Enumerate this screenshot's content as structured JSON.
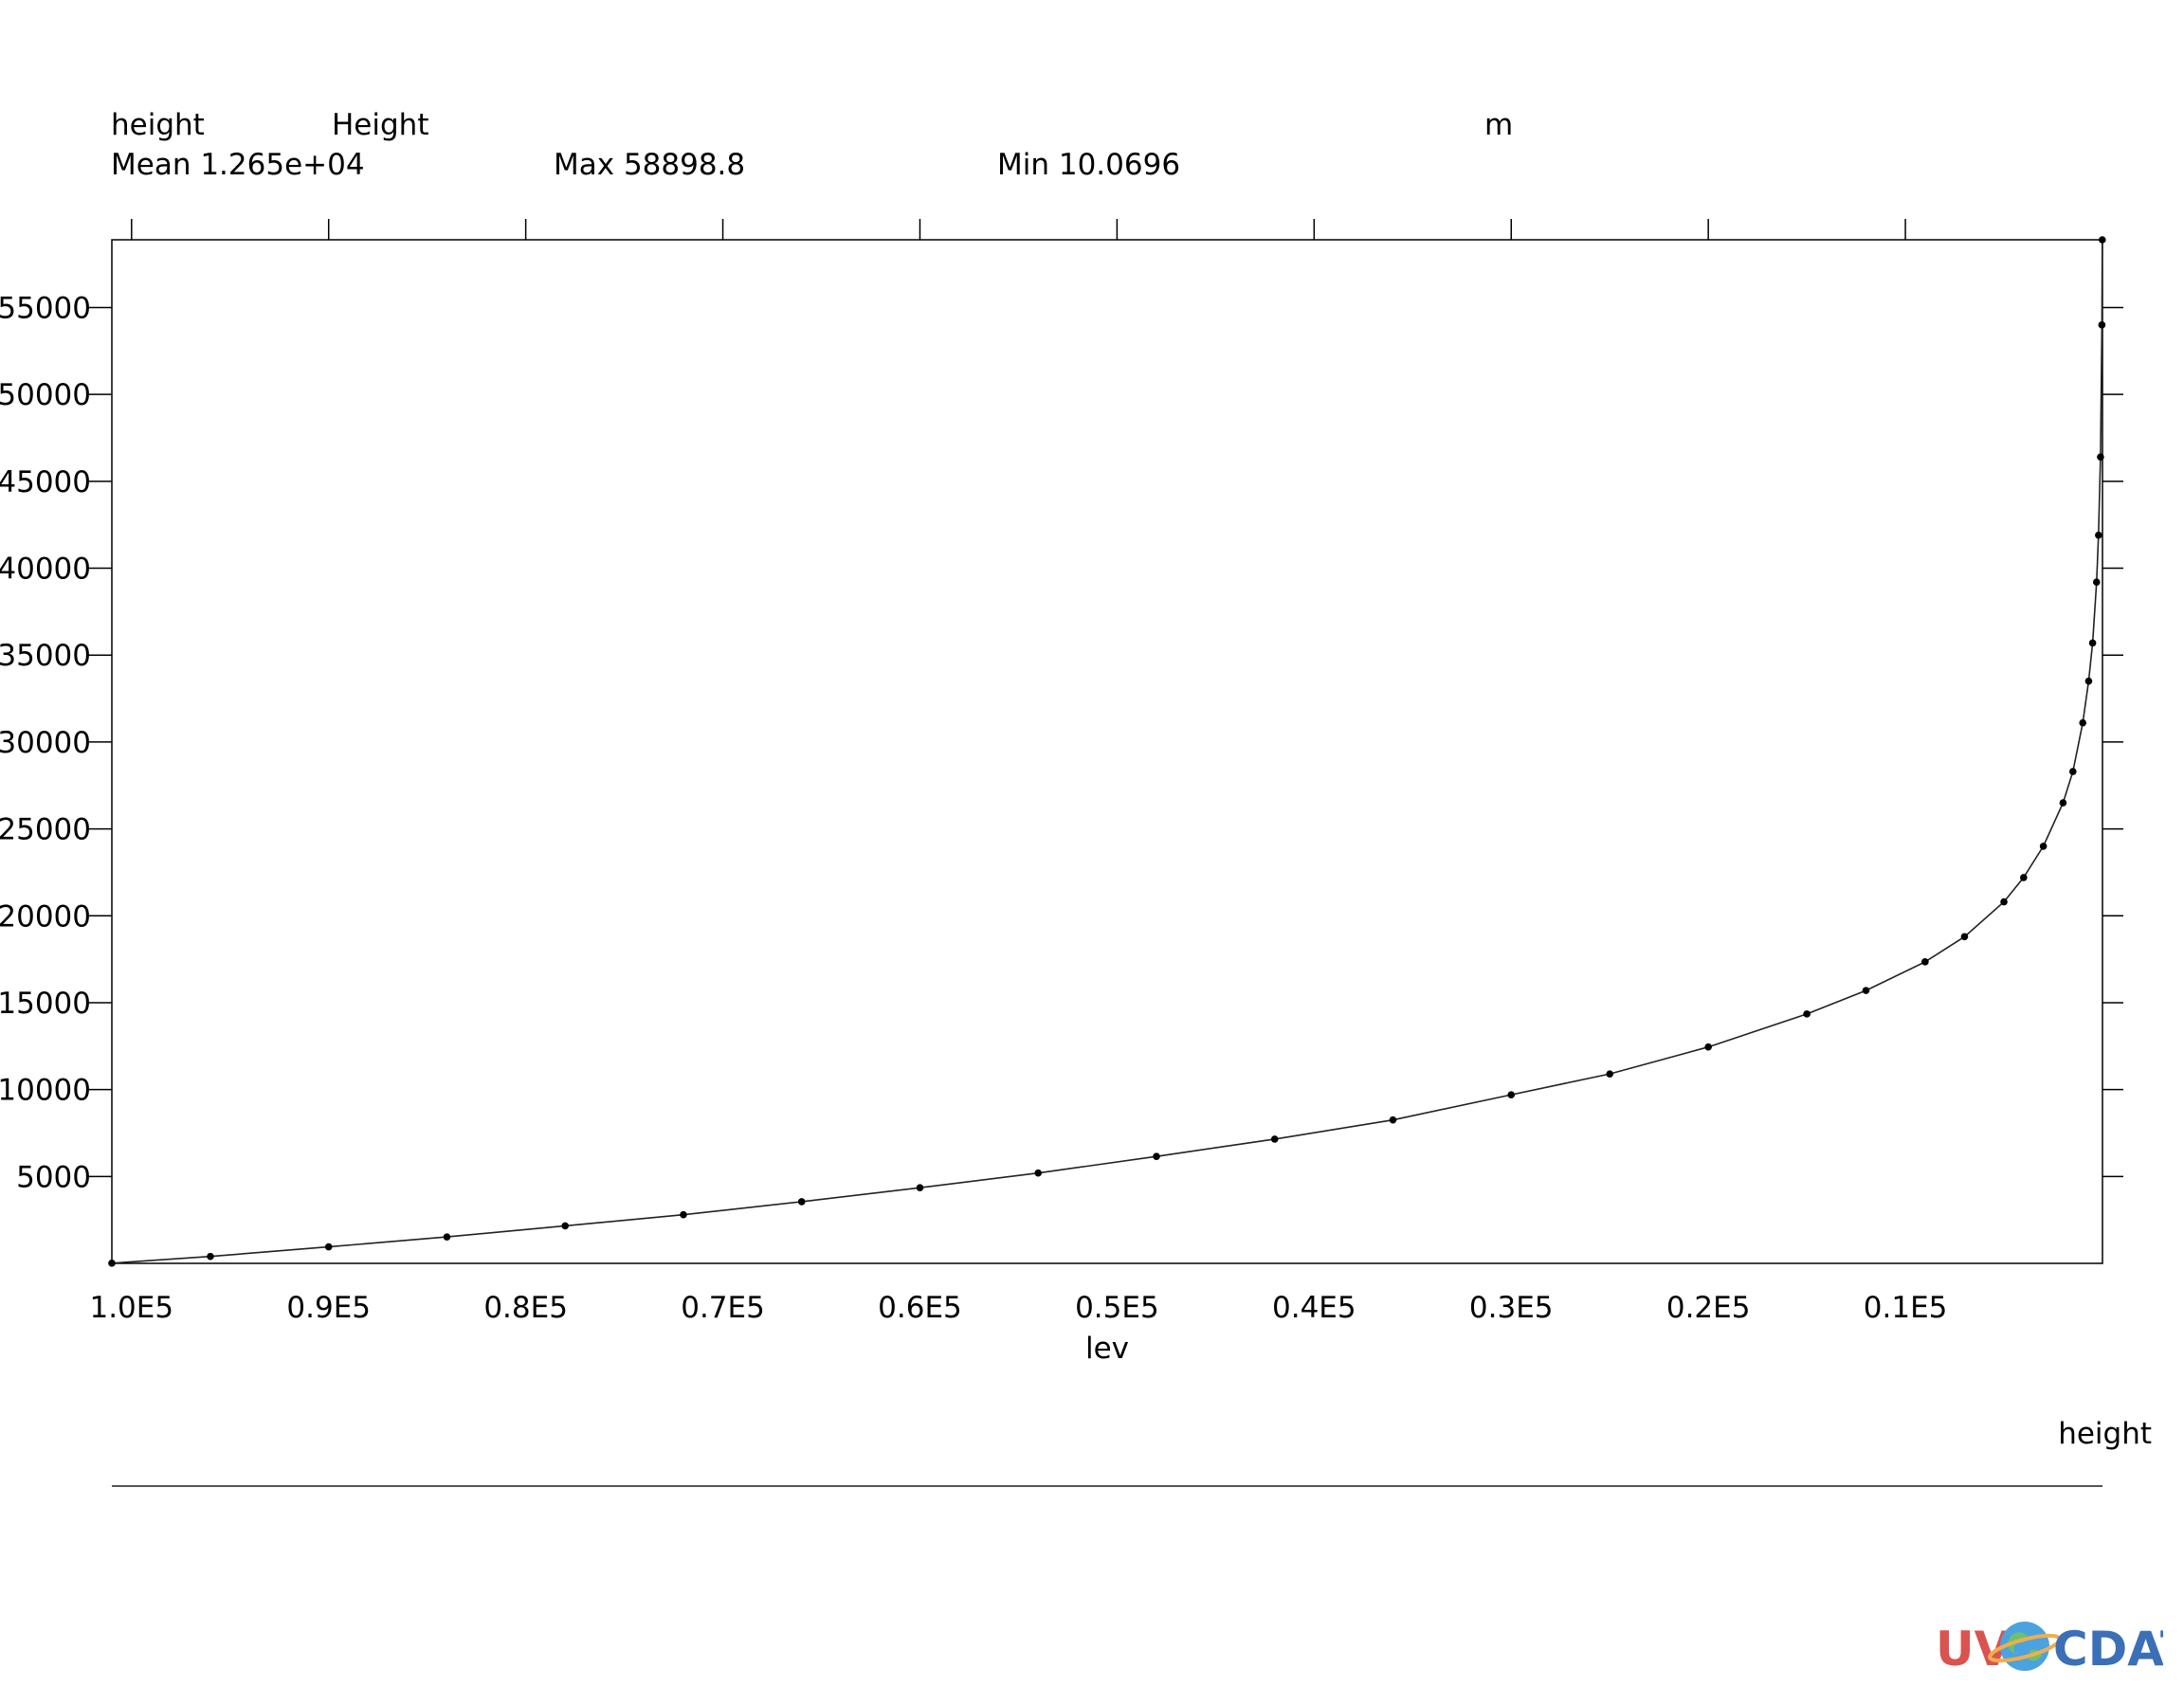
{
  "header": {
    "var_name": "height",
    "long_name": "Height",
    "units": "m",
    "mean": "Mean 1.265e+04",
    "max": "Max 58898.8",
    "min": "Min 10.0696"
  },
  "legend": {
    "label": "height"
  },
  "logo": {
    "text_uv": "UV",
    "text_cdat": "CDAT"
  },
  "chart_data": {
    "type": "line",
    "xlabel": "lev",
    "ylabel": "",
    "x_direction": "decreasing",
    "xlim": [
      101000,
      0
    ],
    "ylim": [
      0,
      58898.8
    ],
    "x_ticks": [
      100000,
      90000,
      80000,
      70000,
      60000,
      50000,
      40000,
      30000,
      20000,
      10000
    ],
    "x_tick_labels": [
      "1.0E5",
      "0.9E5",
      "0.8E5",
      "0.7E5",
      "0.6E5",
      "0.5E5",
      "0.4E5",
      "0.3E5",
      "0.2E5",
      "0.1E5"
    ],
    "y_ticks": [
      5000,
      10000,
      15000,
      20000,
      25000,
      30000,
      35000,
      40000,
      45000,
      50000,
      55000
    ],
    "y_tick_labels": [
      "5000",
      "10000",
      "15000",
      "20000",
      "25000",
      "30000",
      "35000",
      "40000",
      "45000",
      "50000",
      "55000"
    ],
    "markers": true,
    "grid": false,
    "series": [
      {
        "name": "height",
        "x": [
          101000,
          96000,
          90000,
          84000,
          78000,
          72000,
          66000,
          60000,
          54000,
          48000,
          42000,
          36000,
          30000,
          25000,
          20000,
          15000,
          12000,
          9000,
          7000,
          5000,
          4000,
          3000,
          2000,
          1500,
          1000,
          700,
          500,
          300,
          200,
          100,
          30,
          10
        ],
        "y": [
          10.07,
          400,
          950,
          1520,
          2160,
          2800,
          3550,
          4350,
          5200,
          6150,
          7150,
          8250,
          9700,
          10900,
          12450,
          14350,
          15700,
          17350,
          18800,
          20800,
          22200,
          24000,
          26500,
          28300,
          31100,
          33500,
          35700,
          39200,
          41900,
          46400,
          54000,
          58898.8
        ]
      }
    ]
  }
}
